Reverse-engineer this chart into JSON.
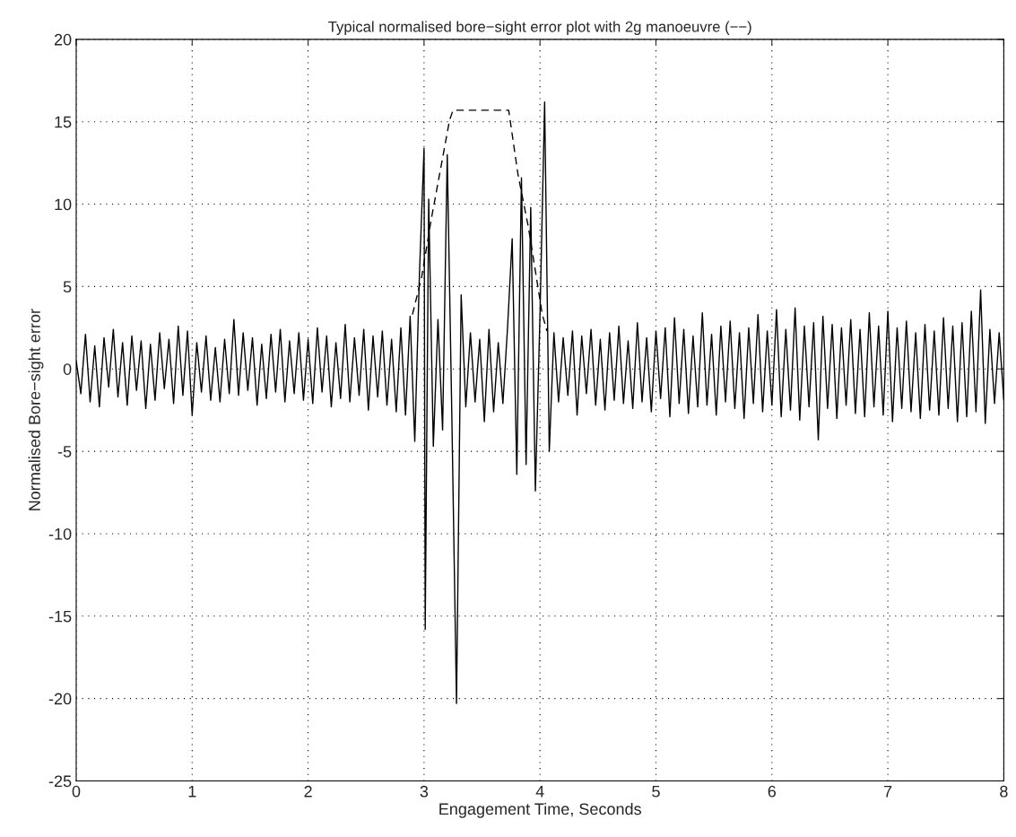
{
  "chart_data": {
    "type": "line",
    "title": "Typical normalised bore−sight error plot with 2g manoeuvre (−−)",
    "xlabel": "Engagement Time, Seconds",
    "ylabel": "Normalised Bore−sight error",
    "xlim": [
      0,
      8
    ],
    "xticks": [
      0,
      1,
      2,
      3,
      4,
      5,
      6,
      7,
      8
    ],
    "ylim": [
      -25,
      20
    ],
    "yticks": [
      -25,
      -20,
      -15,
      -10,
      -5,
      0,
      5,
      10,
      15,
      20
    ],
    "grid": true,
    "legend": false,
    "series": [
      {
        "color": "#000000",
        "line_style": "solid",
        "x": [
          0,
          0.04,
          0.08,
          0.12,
          0.16,
          0.2,
          0.24,
          0.28,
          0.32,
          0.36,
          0.4,
          0.44,
          0.48,
          0.52,
          0.56,
          0.6,
          0.64,
          0.68,
          0.72,
          0.76,
          0.8,
          0.84,
          0.88,
          0.92,
          0.96,
          1.0,
          1.04,
          1.08,
          1.12,
          1.16,
          1.2,
          1.24,
          1.28,
          1.32,
          1.36,
          1.4,
          1.44,
          1.48,
          1.52,
          1.56,
          1.6,
          1.64,
          1.68,
          1.72,
          1.76,
          1.8,
          1.84,
          1.88,
          1.92,
          1.96,
          2.0,
          2.04,
          2.08,
          2.12,
          2.16,
          2.2,
          2.24,
          2.28,
          2.32,
          2.36,
          2.4,
          2.44,
          2.48,
          2.52,
          2.56,
          2.6,
          2.64,
          2.68,
          2.72,
          2.76,
          2.8,
          2.84,
          2.88,
          2.92,
          2.96,
          3.0,
          3.01,
          3.04,
          3.08,
          3.12,
          3.16,
          3.2,
          3.24,
          3.28,
          3.32,
          3.36,
          3.4,
          3.44,
          3.48,
          3.52,
          3.56,
          3.6,
          3.64,
          3.68,
          3.72,
          3.76,
          3.8,
          3.84,
          3.88,
          3.92,
          3.96,
          4.0,
          4.04,
          4.08,
          4.12,
          4.16,
          4.2,
          4.24,
          4.28,
          4.32,
          4.36,
          4.4,
          4.44,
          4.48,
          4.52,
          4.56,
          4.6,
          4.64,
          4.68,
          4.72,
          4.76,
          4.8,
          4.84,
          4.88,
          4.92,
          4.96,
          5.0,
          5.04,
          5.08,
          5.12,
          5.16,
          5.2,
          5.24,
          5.28,
          5.32,
          5.36,
          5.4,
          5.44,
          5.48,
          5.52,
          5.56,
          5.6,
          5.64,
          5.68,
          5.72,
          5.76,
          5.8,
          5.84,
          5.88,
          5.92,
          5.96,
          6.0,
          6.04,
          6.08,
          6.12,
          6.16,
          6.2,
          6.24,
          6.28,
          6.32,
          6.36,
          6.4,
          6.44,
          6.48,
          6.52,
          6.56,
          6.6,
          6.64,
          6.68,
          6.72,
          6.76,
          6.8,
          6.84,
          6.88,
          6.92,
          6.96,
          7.0,
          7.04,
          7.08,
          7.12,
          7.16,
          7.2,
          7.24,
          7.28,
          7.32,
          7.36,
          7.4,
          7.44,
          7.48,
          7.52,
          7.56,
          7.6,
          7.64,
          7.68,
          7.72,
          7.76,
          7.8,
          7.84,
          7.88,
          7.92,
          7.96,
          8.0
        ],
        "values": [
          0.5,
          -1.5,
          2.1,
          -2.0,
          1.4,
          -2.3,
          1.9,
          -1.1,
          2.4,
          -1.7,
          1.6,
          -2.2,
          2.0,
          -1.3,
          1.7,
          -2.4,
          1.5,
          -1.9,
          2.2,
          -1.2,
          1.8,
          -2.1,
          2.6,
          -1.6,
          2.3,
          -2.8,
          1.6,
          -1.4,
          2.0,
          -1.9,
          1.3,
          -2.0,
          1.8,
          -1.5,
          3.0,
          -1.6,
          2.2,
          -1.3,
          1.9,
          -2.2,
          1.5,
          -1.8,
          2.1,
          -1.4,
          2.4,
          -2.0,
          1.7,
          -1.5,
          2.2,
          -1.9,
          1.8,
          -2.1,
          2.5,
          -1.4,
          2.0,
          -2.3,
          1.6,
          -1.8,
          2.7,
          -2.0,
          1.9,
          -1.6,
          2.4,
          -2.5,
          2.0,
          -1.7,
          2.3,
          -2.2,
          1.8,
          -2.6,
          2.5,
          -2.8,
          3.2,
          -4.4,
          5.7,
          13.4,
          -15.8,
          10.3,
          -4.7,
          3.0,
          -3.7,
          13.0,
          -3.0,
          -20.3,
          4.5,
          -2.3,
          2.2,
          -2.0,
          1.8,
          -3.2,
          2.4,
          -2.6,
          1.6,
          -2.1,
          2.5,
          7.9,
          -6.4,
          11.6,
          -5.8,
          9.8,
          -7.4,
          3.3,
          16.2,
          -5.0,
          2.2,
          -2.0,
          1.9,
          -1.6,
          2.3,
          -2.8,
          2.0,
          -1.5,
          2.4,
          -2.2,
          1.8,
          -2.5,
          2.2,
          -1.9,
          2.6,
          -2.1,
          1.7,
          -2.4,
          2.8,
          -2.0,
          1.9,
          -2.6,
          2.3,
          -1.8,
          2.5,
          -2.9,
          3.1,
          -2.1,
          2.4,
          -2.7,
          2.0,
          -2.3,
          3.4,
          -2.2,
          2.1,
          -2.8,
          2.6,
          -2.0,
          2.9,
          -2.4,
          2.2,
          -3.0,
          2.5,
          -2.1,
          3.3,
          -2.6,
          2.3,
          -2.2,
          3.6,
          -2.9,
          2.4,
          -2.5,
          3.7,
          -3.1,
          2.6,
          -2.3,
          2.8,
          -4.3,
          3.2,
          -2.4,
          2.7,
          -3.0,
          2.5,
          -2.2,
          3.0,
          -2.7,
          2.4,
          -2.9,
          3.4,
          -2.3,
          2.6,
          -2.8,
          3.5,
          -3.2,
          2.5,
          -2.4,
          2.9,
          -2.6,
          2.2,
          -3.0,
          2.7,
          -2.5,
          2.3,
          -2.8,
          3.1,
          -2.4,
          2.6,
          -3.2,
          2.8,
          -2.9,
          3.5,
          -2.6,
          4.8,
          -3.3,
          2.4,
          -2.1,
          2.2,
          -1.9
        ]
      },
      {
        "color": "#000000",
        "line_style": "dashed",
        "x": [
          2.9,
          2.98,
          3.06,
          3.16,
          3.22,
          3.25,
          3.73,
          3.81,
          3.9,
          4.02,
          4.06
        ],
        "values": [
          3.3,
          5.6,
          9.0,
          12.8,
          15.1,
          15.7,
          15.7,
          11.8,
          8.6,
          3.3,
          2.3
        ]
      }
    ]
  }
}
